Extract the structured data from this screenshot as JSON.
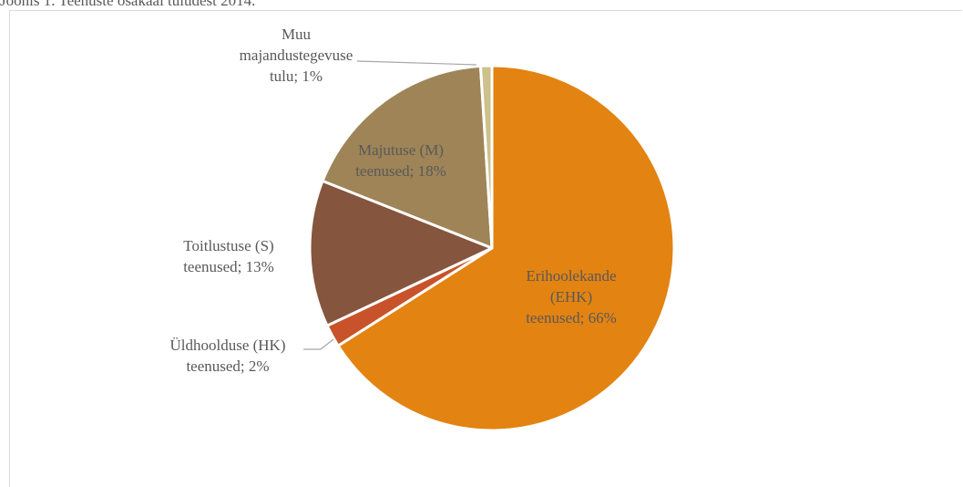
{
  "caption": "Joonis 1. Teenuste osakaal tuludest 2014.",
  "chart_data": {
    "type": "pie",
    "title": "",
    "slices": [
      {
        "label": "Erihoolekande (EHK) teenused; 66%",
        "value": 66,
        "color": "#e38312",
        "label_color": "#595959"
      },
      {
        "label": "Üldhoolduse (HK) teenused; 2%",
        "value": 2,
        "color": "#c8532a",
        "label_color": "#595959"
      },
      {
        "label": "Toitlustuse (S) teenused; 13%",
        "value": 13,
        "color": "#85553e",
        "label_color": "#595959"
      },
      {
        "label": "Majutuse (M) teenused; 18%",
        "value": 18,
        "color": "#9e8457",
        "label_color": "#595959"
      },
      {
        "label": "Muu majandustegevuse tulu; 1%",
        "value": 1,
        "color": "#cdc18c",
        "label_color": "#595959"
      }
    ],
    "start_angle_deg": 0,
    "direction": "clockwise",
    "legend": "none",
    "data_labels": "category; percent"
  }
}
